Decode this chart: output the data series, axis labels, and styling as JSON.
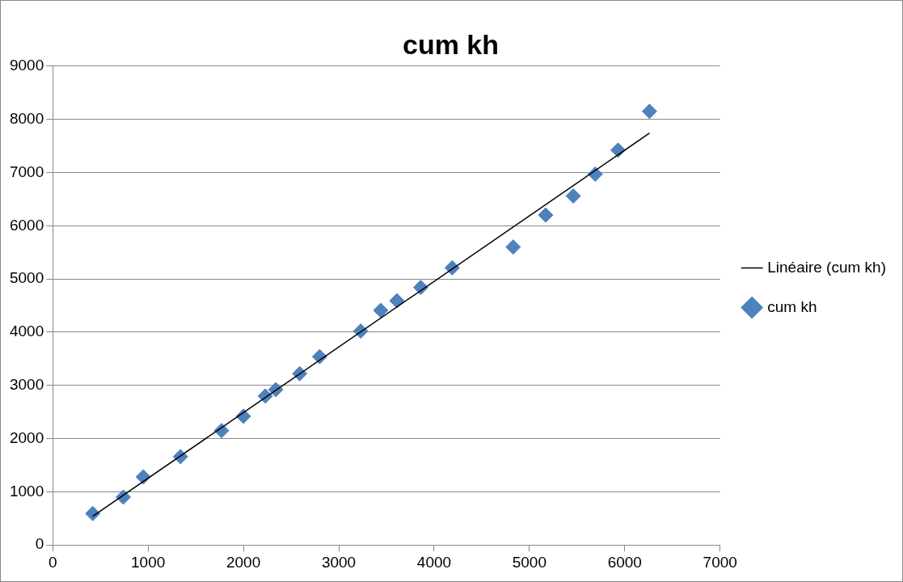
{
  "chart_data": {
    "type": "scatter",
    "title": "cum kh",
    "series": [
      {
        "name": "cum kh",
        "color": "#4f81bd",
        "marker": "diamond",
        "x": [
          420,
          740,
          950,
          1340,
          1770,
          2000,
          2230,
          2340,
          2590,
          2800,
          3230,
          3440,
          3610,
          3860,
          4190,
          4830,
          5170,
          5460,
          5690,
          5930,
          6260
        ],
        "values": [
          590,
          900,
          1280,
          1660,
          2150,
          2420,
          2800,
          2920,
          3220,
          3540,
          4020,
          4410,
          4590,
          4840,
          5210,
          5600,
          6200,
          6560,
          6970,
          7420,
          8150
        ]
      },
      {
        "name": "Linéaire (cum kh)",
        "type": "line",
        "color": "#000000",
        "marker": "none",
        "line_style": "solid",
        "x": [
          420,
          6260
        ],
        "values": [
          540,
          7740
        ]
      }
    ],
    "xlim": [
      0,
      7000
    ],
    "xticks": [
      0,
      1000,
      2000,
      3000,
      4000,
      5000,
      6000,
      7000
    ],
    "ylim": [
      0,
      9000
    ],
    "yticks": [
      0,
      1000,
      2000,
      3000,
      4000,
      5000,
      6000,
      7000,
      8000,
      9000
    ],
    "grid": "y",
    "legend": "right"
  }
}
